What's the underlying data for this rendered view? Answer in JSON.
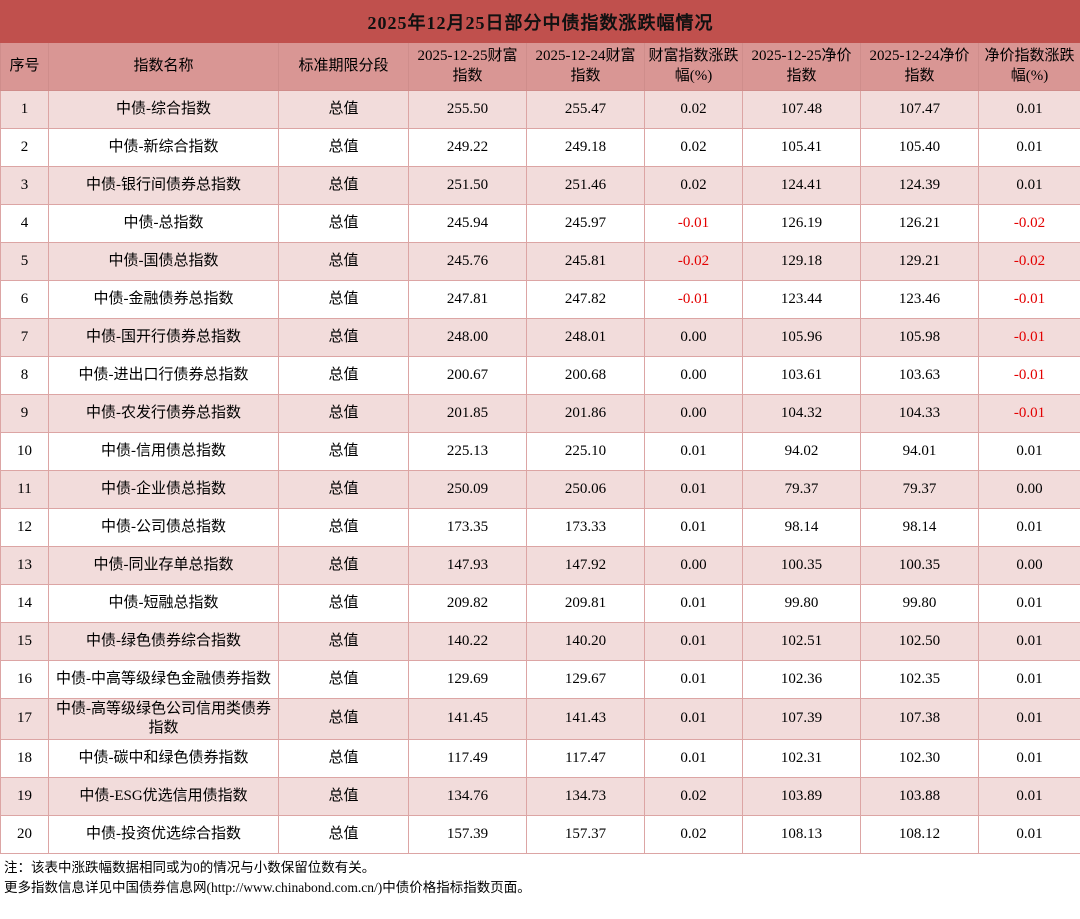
{
  "title": "2025年12月25日部分中债指数涨跌幅情况",
  "colors": {
    "title_bg": "#c0504d",
    "header_bg": "#d99694",
    "row_alt_bg": "#f2dcdb",
    "row_bg": "#ffffff",
    "negative_value": "#e30000"
  },
  "chart_data": {
    "type": "table",
    "title": "2025年12月25日部分中债指数涨跌幅情况",
    "columns": [
      "序号",
      "指数名称",
      "标准期限分段",
      "2025-12-25财富指数",
      "2025-12-24财富指数",
      "财富指数涨跌幅(%)",
      "2025-12-25净价指数",
      "2025-12-24净价指数",
      "净价指数涨跌幅(%)"
    ],
    "rows": [
      [
        "1",
        "中债-综合指数",
        "总值",
        "255.50",
        "255.47",
        "0.02",
        "107.48",
        "107.47",
        "0.01"
      ],
      [
        "2",
        "中债-新综合指数",
        "总值",
        "249.22",
        "249.18",
        "0.02",
        "105.41",
        "105.40",
        "0.01"
      ],
      [
        "3",
        "中债-银行间债券总指数",
        "总值",
        "251.50",
        "251.46",
        "0.02",
        "124.41",
        "124.39",
        "0.01"
      ],
      [
        "4",
        "中债-总指数",
        "总值",
        "245.94",
        "245.97",
        "-0.01",
        "126.19",
        "126.21",
        "-0.02"
      ],
      [
        "5",
        "中债-国债总指数",
        "总值",
        "245.76",
        "245.81",
        "-0.02",
        "129.18",
        "129.21",
        "-0.02"
      ],
      [
        "6",
        "中债-金融债券总指数",
        "总值",
        "247.81",
        "247.82",
        "-0.01",
        "123.44",
        "123.46",
        "-0.01"
      ],
      [
        "7",
        "中债-国开行债券总指数",
        "总值",
        "248.00",
        "248.01",
        "0.00",
        "105.96",
        "105.98",
        "-0.01"
      ],
      [
        "8",
        "中债-进出口行债券总指数",
        "总值",
        "200.67",
        "200.68",
        "0.00",
        "103.61",
        "103.63",
        "-0.01"
      ],
      [
        "9",
        "中债-农发行债券总指数",
        "总值",
        "201.85",
        "201.86",
        "0.00",
        "104.32",
        "104.33",
        "-0.01"
      ],
      [
        "10",
        "中债-信用债总指数",
        "总值",
        "225.13",
        "225.10",
        "0.01",
        "94.02",
        "94.01",
        "0.01"
      ],
      [
        "11",
        "中债-企业债总指数",
        "总值",
        "250.09",
        "250.06",
        "0.01",
        "79.37",
        "79.37",
        "0.00"
      ],
      [
        "12",
        "中债-公司债总指数",
        "总值",
        "173.35",
        "173.33",
        "0.01",
        "98.14",
        "98.14",
        "0.01"
      ],
      [
        "13",
        "中债-同业存单总指数",
        "总值",
        "147.93",
        "147.92",
        "0.00",
        "100.35",
        "100.35",
        "0.00"
      ],
      [
        "14",
        "中债-短融总指数",
        "总值",
        "209.82",
        "209.81",
        "0.01",
        "99.80",
        "99.80",
        "0.01"
      ],
      [
        "15",
        "中债-绿色债券综合指数",
        "总值",
        "140.22",
        "140.20",
        "0.01",
        "102.51",
        "102.50",
        "0.01"
      ],
      [
        "16",
        "中债-中高等级绿色金融债券指数",
        "总值",
        "129.69",
        "129.67",
        "0.01",
        "102.36",
        "102.35",
        "0.01"
      ],
      [
        "17",
        "中债-高等级绿色公司信用类债券指数",
        "总值",
        "141.45",
        "141.43",
        "0.01",
        "107.39",
        "107.38",
        "0.01"
      ],
      [
        "18",
        "中债-碳中和绿色债券指数",
        "总值",
        "117.49",
        "117.47",
        "0.01",
        "102.31",
        "102.30",
        "0.01"
      ],
      [
        "19",
        "中债-ESG优选信用债指数",
        "总值",
        "134.76",
        "134.73",
        "0.02",
        "103.89",
        "103.88",
        "0.01"
      ],
      [
        "20",
        "中债-投资优选综合指数",
        "总值",
        "157.39",
        "157.37",
        "0.02",
        "108.13",
        "108.12",
        "0.01"
      ]
    ]
  },
  "notes": [
    "注：该表中涨跌幅数据相同或为0的情况与小数保留位数有关。",
    "更多指数信息详见中国债券信息网(http://www.chinabond.com.cn/)中债价格指标指数页面。"
  ]
}
